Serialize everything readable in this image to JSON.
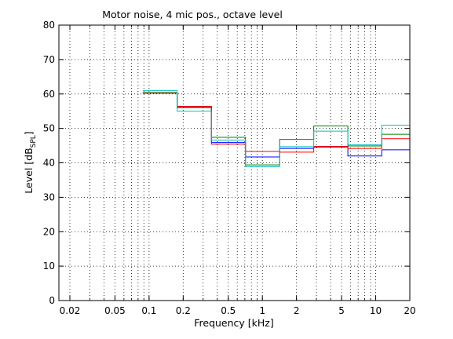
{
  "chart_data": {
    "type": "line",
    "title": "Motor noise, 4 mic pos., octave level",
    "xlabel": "Frequency [kHz]",
    "ylabel_main": "Level [dB",
    "ylabel_sub": "SPL",
    "ylabel_close": "]",
    "x_scale": "log",
    "xlim": [
      0.016,
      20
    ],
    "ylim": [
      0,
      80
    ],
    "xticks": [
      0.02,
      0.05,
      0.1,
      0.2,
      0.5,
      1,
      2,
      5,
      10,
      20
    ],
    "xtick_labels": [
      "0.02",
      "0.05",
      "0.1",
      "0.2",
      "0.5",
      "1",
      "2",
      "5",
      "10",
      "20"
    ],
    "yticks": [
      0,
      10,
      20,
      30,
      40,
      50,
      60,
      70,
      80
    ],
    "ytick_labels": [
      "0",
      "10",
      "20",
      "30",
      "40",
      "50",
      "60",
      "70",
      "80"
    ],
    "grid": true,
    "step_edges": [
      0.088,
      0.177,
      0.355,
      0.71,
      1.42,
      2.84,
      5.68,
      11.3,
      20
    ],
    "series": [
      {
        "color": "#0000ff",
        "values": [
          60.3,
          56.3,
          45.9,
          41.7,
          44.2,
          44.6,
          42.0,
          43.8
        ]
      },
      {
        "color": "#008000",
        "values": [
          60.4,
          56.0,
          47.4,
          39.4,
          46.8,
          50.7,
          44.9,
          48.3
        ]
      },
      {
        "color": "#ff0000",
        "values": [
          60.2,
          56.4,
          45.4,
          43.3,
          43.1,
          44.8,
          44.2,
          47.0
        ]
      },
      {
        "color": "#00bfbf",
        "values": [
          61.0,
          55.0,
          46.6,
          38.9,
          44.7,
          49.2,
          45.2,
          50.9
        ]
      }
    ]
  }
}
